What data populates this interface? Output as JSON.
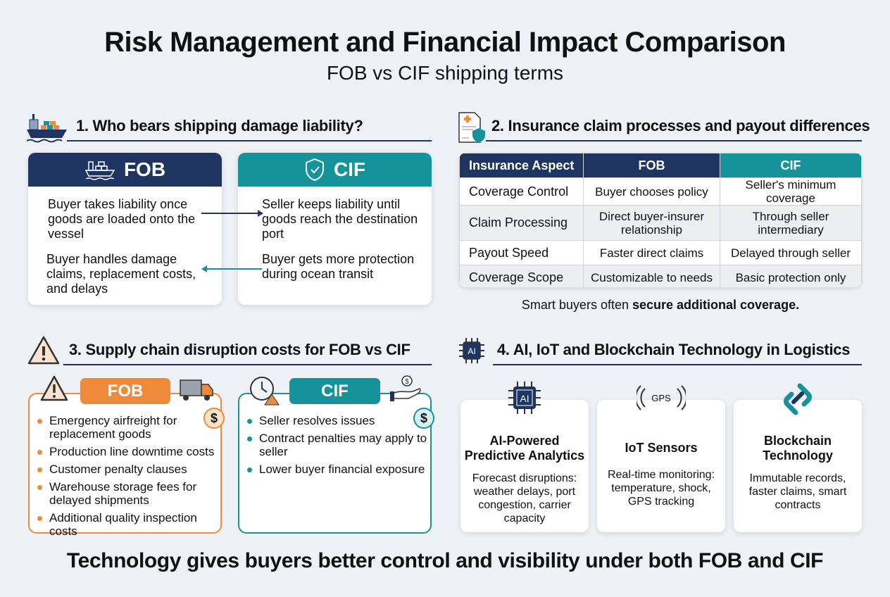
{
  "title": "Risk Management and Financial Impact Comparison",
  "subtitle": "FOB vs CIF shipping terms",
  "colors": {
    "navy": "#1e3461",
    "teal": "#16939a",
    "orange": "#ef8a3a",
    "background": "#eef2f6"
  },
  "section1": {
    "heading": "1. Who bears shipping damage liability?",
    "icon": "cargo-ship-icon",
    "fob": {
      "label": "FOB",
      "icon": "cargo-ship-icon",
      "point1": "Buyer takes liability once goods are loaded onto the vessel",
      "point2": "Buyer handles damage claims, replacement costs, and delays"
    },
    "cif": {
      "label": "CIF",
      "icon": "shield-check-icon",
      "point1": "Seller keeps liability until goods reach the destination port",
      "point2": "Buyer gets more protection during ocean transit"
    }
  },
  "section2": {
    "heading": "2. Insurance claim processes and payout differences",
    "icon": "insurance-document-icon",
    "columns": [
      "Insurance Aspect",
      "FOB",
      "CIF"
    ],
    "rows": [
      [
        "Coverage Control",
        "Buyer chooses policy",
        "Seller's minimum coverage"
      ],
      [
        "Claim Processing",
        "Direct buyer-insurer relationship",
        "Through seller intermediary"
      ],
      [
        "Payout Speed",
        "Faster direct claims",
        "Delayed through seller"
      ],
      [
        "Coverage Scope",
        "Customizable to needs",
        "Basic protection only"
      ]
    ],
    "note_prefix": "Smart buyers often ",
    "note_bold": "secure additional coverage."
  },
  "section3": {
    "heading": "3. Supply chain disruption costs for FOB vs CIF",
    "icon": "warning-icon",
    "fob": {
      "label": "FOB",
      "items": [
        "Emergency airfreight for replacement goods",
        "Production line downtime costs",
        "Customer penalty clauses",
        "Warehouse storage fees for delayed shipments",
        "Additional quality inspection costs"
      ],
      "dollar": "$"
    },
    "cif": {
      "label": "CIF",
      "items": [
        "Seller resolves issues",
        "Contract penalties may apply to seller",
        "Lower buyer financial exposure"
      ],
      "dollar": "$"
    }
  },
  "section4": {
    "heading": "4. AI, IoT and Blockchain Technology in Logistics",
    "icon": "ai-chip-icon",
    "cards": [
      {
        "title": "AI-Powered Predictive Analytics",
        "text": "Forecast disruptions: weather delays, port congestion, carrier capacity",
        "icon": "ai-chip-icon",
        "icon_text": "AI"
      },
      {
        "title": "IoT Sensors",
        "text": "Real-time monitoring: temperature, shock, GPS tracking",
        "icon": "gps-signal-icon",
        "icon_text": "GPS"
      },
      {
        "title": "Blockchain Technology",
        "text": "Immutable records, faster claims, smart contracts",
        "icon": "chain-link-icon"
      }
    ]
  },
  "footer": "Technology gives buyers better control and visibility under both FOB and CIF"
}
